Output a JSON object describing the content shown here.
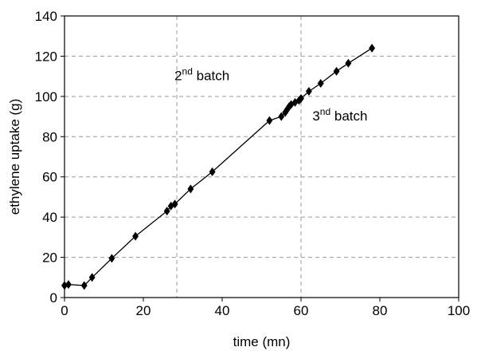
{
  "chart_data": {
    "type": "line",
    "title": "",
    "xlabel": "time (mn)",
    "ylabel": "ethylene uptake (g)",
    "xlim": [
      0,
      100
    ],
    "ylim": [
      0,
      140
    ],
    "xticks": [
      0,
      20,
      40,
      60,
      80,
      100
    ],
    "yticks": [
      0,
      20,
      40,
      60,
      80,
      100,
      120,
      140
    ],
    "grid": "horizontal dashed",
    "legend": "none",
    "series": [
      {
        "marker": "diamond",
        "color": "#000000",
        "points": [
          [
            0,
            6
          ],
          [
            1,
            6.5
          ],
          [
            5,
            6
          ],
          [
            7,
            10
          ],
          [
            12,
            19.5
          ],
          [
            18,
            30.5
          ],
          [
            26,
            43
          ],
          [
            27,
            45.5
          ],
          [
            28,
            46.5
          ],
          [
            32,
            54
          ],
          [
            37.5,
            62.5
          ],
          [
            52,
            88
          ],
          [
            55,
            90
          ],
          [
            56,
            92
          ],
          [
            56.5,
            93.5
          ],
          [
            57,
            95
          ],
          [
            57.5,
            96
          ],
          [
            58.5,
            97
          ],
          [
            59.5,
            98
          ],
          [
            60,
            99
          ],
          [
            62,
            102.5
          ],
          [
            65,
            106.5
          ],
          [
            69,
            112.5
          ],
          [
            72,
            116.5
          ],
          [
            78,
            124
          ]
        ]
      }
    ],
    "vlines": [
      {
        "x": 28.5,
        "style": "dashed"
      },
      {
        "x": 60,
        "style": "dashed"
      }
    ],
    "annotations": [
      {
        "id": "batch2",
        "x": 28.5,
        "y": 108,
        "num": "2",
        "sup": "nd",
        "text": " batch"
      },
      {
        "id": "batch3",
        "x": 63.5,
        "y": 88,
        "num": "3",
        "sup": "nd",
        "text": " batch"
      }
    ]
  }
}
